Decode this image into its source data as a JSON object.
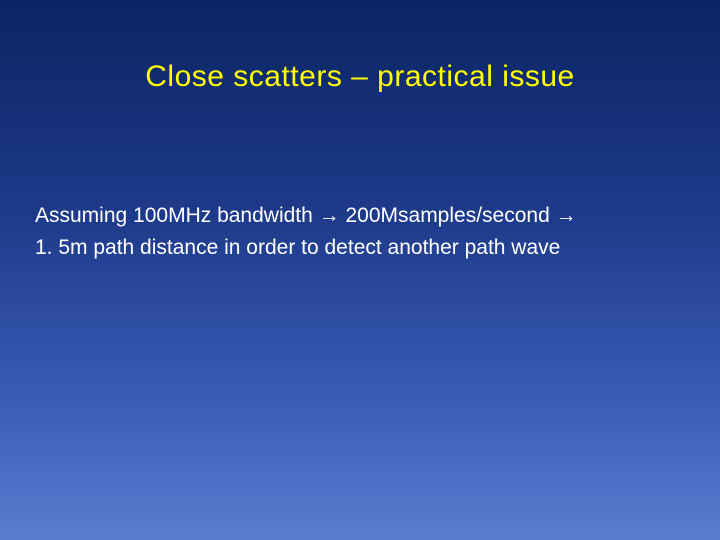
{
  "slide": {
    "title": "Close scatters – practical issue",
    "title_color": "#ffff00",
    "title_fontsize": 30,
    "body_lines": [
      "Assuming 100MHz bandwidth → 200Msamples/second →",
      "1. 5m path distance in order to detect another path wave"
    ],
    "body_color": "#ffffff",
    "body_fontsize": 21,
    "background_gradient_top": "#0b2463",
    "background_gradient_bottom": "#5a7dd0"
  }
}
